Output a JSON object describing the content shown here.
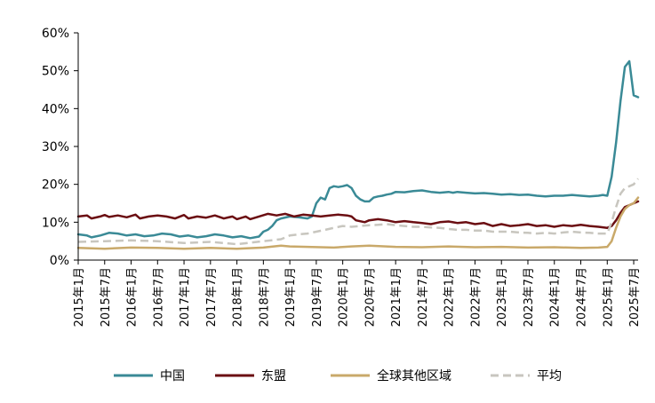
{
  "chart_data": {
    "type": "line",
    "title": "",
    "xlabel": "",
    "ylabel": "",
    "ylim": [
      0,
      60
    ],
    "y_tick_labels": [
      "0%",
      "10%",
      "20%",
      "30%",
      "40%",
      "50%",
      "60%"
    ],
    "y_tick_values": [
      0,
      10,
      20,
      30,
      40,
      50,
      60
    ],
    "x_tick_labels": [
      "2015年1月",
      "2015年7月",
      "2016年1月",
      "2016年7月",
      "2017年1月",
      "2017年7月",
      "2018年1月",
      "2018年7月",
      "2019年1月",
      "2019年7月",
      "2020年1月",
      "2020年7月",
      "2021年1月",
      "2021年7月",
      "2022年1月",
      "2022年7月",
      "2023年1月",
      "2023年7月",
      "2024年1月",
      "2024年7月",
      "2025年1月",
      "2025年7月"
    ],
    "x_start": "2015-01",
    "grid": false,
    "legend_position": "bottom",
    "series": [
      {
        "name": "中国",
        "color": "#3a8a96",
        "dash": "solid",
        "points": [
          [
            0,
            6.8
          ],
          [
            2,
            6.5
          ],
          [
            3,
            6.0
          ],
          [
            5,
            6.5
          ],
          [
            7,
            7.2
          ],
          [
            9,
            7.0
          ],
          [
            11,
            6.5
          ],
          [
            13,
            6.8
          ],
          [
            15,
            6.3
          ],
          [
            17,
            6.5
          ],
          [
            19,
            7.0
          ],
          [
            21,
            6.8
          ],
          [
            23,
            6.2
          ],
          [
            25,
            6.5
          ],
          [
            27,
            6.0
          ],
          [
            29,
            6.3
          ],
          [
            31,
            6.8
          ],
          [
            33,
            6.5
          ],
          [
            35,
            6.0
          ],
          [
            37,
            6.3
          ],
          [
            39,
            5.8
          ],
          [
            41,
            6.2
          ],
          [
            42,
            7.5
          ],
          [
            43,
            8.0
          ],
          [
            44,
            9.0
          ],
          [
            45,
            10.5
          ],
          [
            46,
            11.0
          ],
          [
            48,
            11.5
          ],
          [
            50,
            11.3
          ],
          [
            52,
            11.0
          ],
          [
            53,
            11.5
          ],
          [
            54,
            15.0
          ],
          [
            55,
            16.5
          ],
          [
            56,
            16.0
          ],
          [
            57,
            19.0
          ],
          [
            58,
            19.5
          ],
          [
            59,
            19.3
          ],
          [
            60,
            19.5
          ],
          [
            61,
            19.8
          ],
          [
            62,
            19.0
          ],
          [
            63,
            17.0
          ],
          [
            64,
            16.0
          ],
          [
            65,
            15.5
          ],
          [
            66,
            15.5
          ],
          [
            67,
            16.5
          ],
          [
            68,
            16.8
          ],
          [
            69,
            17.0
          ],
          [
            70,
            17.3
          ],
          [
            71,
            17.5
          ],
          [
            72,
            18.0
          ],
          [
            74,
            17.9
          ],
          [
            76,
            18.2
          ],
          [
            78,
            18.4
          ],
          [
            80,
            18.0
          ],
          [
            82,
            17.8
          ],
          [
            84,
            18.0
          ],
          [
            85,
            17.8
          ],
          [
            86,
            18.0
          ],
          [
            88,
            17.8
          ],
          [
            90,
            17.6
          ],
          [
            92,
            17.7
          ],
          [
            94,
            17.5
          ],
          [
            96,
            17.3
          ],
          [
            98,
            17.4
          ],
          [
            100,
            17.2
          ],
          [
            102,
            17.3
          ],
          [
            104,
            17.0
          ],
          [
            106,
            16.8
          ],
          [
            108,
            17.0
          ],
          [
            110,
            17.0
          ],
          [
            112,
            17.2
          ],
          [
            114,
            17.0
          ],
          [
            116,
            16.8
          ],
          [
            118,
            17.0
          ],
          [
            119,
            17.2
          ],
          [
            120,
            17.0
          ],
          [
            121,
            22.0
          ],
          [
            122,
            31.0
          ],
          [
            123,
            42.0
          ],
          [
            124,
            51.0
          ],
          [
            125,
            52.5
          ],
          [
            126,
            43.5
          ],
          [
            127,
            43.0
          ]
        ]
      },
      {
        "name": "东盟",
        "color": "#6b0e12",
        "dash": "solid",
        "points": [
          [
            0,
            11.5
          ],
          [
            2,
            11.8
          ],
          [
            3,
            11.0
          ],
          [
            5,
            11.5
          ],
          [
            6,
            11.9
          ],
          [
            7,
            11.4
          ],
          [
            9,
            11.8
          ],
          [
            11,
            11.3
          ],
          [
            13,
            12.0
          ],
          [
            14,
            11.0
          ],
          [
            16,
            11.5
          ],
          [
            18,
            11.8
          ],
          [
            20,
            11.5
          ],
          [
            22,
            11.0
          ],
          [
            24,
            11.9
          ],
          [
            25,
            11.0
          ],
          [
            27,
            11.5
          ],
          [
            29,
            11.2
          ],
          [
            31,
            11.8
          ],
          [
            33,
            11.0
          ],
          [
            35,
            11.5
          ],
          [
            36,
            10.8
          ],
          [
            38,
            11.5
          ],
          [
            39,
            10.8
          ],
          [
            41,
            11.5
          ],
          [
            43,
            12.2
          ],
          [
            45,
            11.8
          ],
          [
            47,
            12.2
          ],
          [
            49,
            11.5
          ],
          [
            51,
            12.0
          ],
          [
            53,
            11.8
          ],
          [
            55,
            11.5
          ],
          [
            57,
            11.8
          ],
          [
            59,
            12.0
          ],
          [
            61,
            11.8
          ],
          [
            62,
            11.5
          ],
          [
            63,
            10.5
          ],
          [
            65,
            10.0
          ],
          [
            66,
            10.5
          ],
          [
            68,
            10.8
          ],
          [
            70,
            10.5
          ],
          [
            72,
            10.0
          ],
          [
            74,
            10.3
          ],
          [
            76,
            10.0
          ],
          [
            78,
            9.8
          ],
          [
            80,
            9.5
          ],
          [
            82,
            10.0
          ],
          [
            84,
            10.2
          ],
          [
            86,
            9.8
          ],
          [
            88,
            10.0
          ],
          [
            90,
            9.5
          ],
          [
            92,
            9.8
          ],
          [
            94,
            9.0
          ],
          [
            96,
            9.5
          ],
          [
            98,
            9.0
          ],
          [
            100,
            9.2
          ],
          [
            102,
            9.5
          ],
          [
            104,
            9.0
          ],
          [
            106,
            9.2
          ],
          [
            108,
            8.8
          ],
          [
            110,
            9.2
          ],
          [
            112,
            9.0
          ],
          [
            114,
            9.3
          ],
          [
            116,
            9.0
          ],
          [
            118,
            8.8
          ],
          [
            120,
            8.5
          ],
          [
            121,
            9.0
          ],
          [
            122,
            10.5
          ],
          [
            123,
            12.5
          ],
          [
            124,
            14.0
          ],
          [
            125,
            14.5
          ],
          [
            126,
            15.0
          ],
          [
            127,
            15.5
          ]
        ]
      },
      {
        "name": "全球其他区域",
        "color": "#c9a96a",
        "dash": "solid",
        "points": [
          [
            0,
            3.2
          ],
          [
            6,
            3.0
          ],
          [
            12,
            3.3
          ],
          [
            18,
            3.2
          ],
          [
            24,
            3.0
          ],
          [
            30,
            3.2
          ],
          [
            36,
            3.0
          ],
          [
            42,
            3.3
          ],
          [
            46,
            3.8
          ],
          [
            48,
            3.6
          ],
          [
            52,
            3.5
          ],
          [
            58,
            3.3
          ],
          [
            62,
            3.6
          ],
          [
            66,
            3.8
          ],
          [
            72,
            3.5
          ],
          [
            78,
            3.4
          ],
          [
            84,
            3.6
          ],
          [
            90,
            3.4
          ],
          [
            96,
            3.5
          ],
          [
            102,
            3.3
          ],
          [
            108,
            3.4
          ],
          [
            114,
            3.2
          ],
          [
            118,
            3.3
          ],
          [
            120,
            3.5
          ],
          [
            121,
            5.0
          ],
          [
            122,
            8.5
          ],
          [
            123,
            11.5
          ],
          [
            124,
            13.5
          ],
          [
            125,
            14.5
          ],
          [
            126,
            15.0
          ],
          [
            127,
            16.5
          ]
        ]
      },
      {
        "name": "平均",
        "color": "#c8c6bf",
        "dash": "dashed",
        "points": [
          [
            0,
            4.8
          ],
          [
            6,
            5.0
          ],
          [
            12,
            5.2
          ],
          [
            18,
            5.0
          ],
          [
            24,
            4.5
          ],
          [
            30,
            4.8
          ],
          [
            36,
            4.2
          ],
          [
            42,
            5.0
          ],
          [
            46,
            5.5
          ],
          [
            48,
            6.5
          ],
          [
            50,
            6.8
          ],
          [
            52,
            7.0
          ],
          [
            54,
            7.5
          ],
          [
            56,
            8.0
          ],
          [
            58,
            8.5
          ],
          [
            60,
            9.0
          ],
          [
            62,
            8.8
          ],
          [
            64,
            9.0
          ],
          [
            66,
            9.2
          ],
          [
            68,
            9.3
          ],
          [
            70,
            9.5
          ],
          [
            72,
            9.2
          ],
          [
            74,
            9.0
          ],
          [
            76,
            8.8
          ],
          [
            78,
            8.8
          ],
          [
            80,
            8.6
          ],
          [
            82,
            8.5
          ],
          [
            84,
            8.2
          ],
          [
            86,
            8.0
          ],
          [
            88,
            8.0
          ],
          [
            90,
            7.8
          ],
          [
            92,
            7.8
          ],
          [
            94,
            7.5
          ],
          [
            96,
            7.5
          ],
          [
            98,
            7.5
          ],
          [
            100,
            7.3
          ],
          [
            102,
            7.2
          ],
          [
            104,
            7.0
          ],
          [
            106,
            7.2
          ],
          [
            108,
            7.0
          ],
          [
            110,
            7.3
          ],
          [
            112,
            7.5
          ],
          [
            114,
            7.3
          ],
          [
            116,
            7.2
          ],
          [
            118,
            7.0
          ],
          [
            120,
            7.0
          ],
          [
            121,
            10.0
          ],
          [
            122,
            14.0
          ],
          [
            123,
            17.5
          ],
          [
            124,
            19.0
          ],
          [
            125,
            19.5
          ],
          [
            126,
            20.0
          ],
          [
            127,
            21.5
          ]
        ]
      }
    ]
  }
}
